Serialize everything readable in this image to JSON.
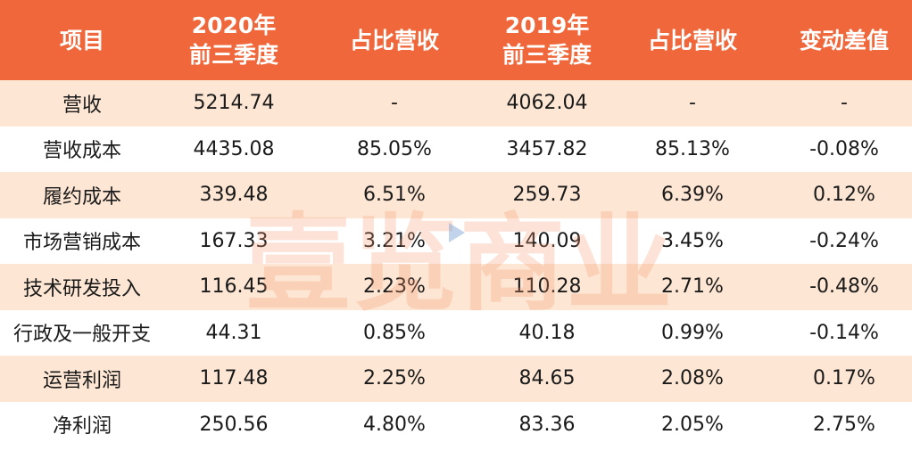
{
  "header": {
    "col0": "项目",
    "col1_line1": "2020年",
    "col1_line2": "前三季度",
    "col2": "占比营收",
    "col3_line1": "2019年",
    "col3_line2": "前三季度",
    "col4": "占比营收",
    "col5": "变动差值"
  },
  "rows": [
    {
      "item": "营收",
      "v2020": "5214.74",
      "p2020": "-",
      "v2019": "4062.04",
      "p2019": "-",
      "diff": "-"
    },
    {
      "item": "营收成本",
      "v2020": "4435.08",
      "p2020": "85.05%",
      "v2019": "3457.82",
      "p2019": "85.13%",
      "diff": "-0.08%"
    },
    {
      "item": "履约成本",
      "v2020": "339.48",
      "p2020": "6.51%",
      "v2019": "259.73",
      "p2019": "6.39%",
      "diff": "0.12%"
    },
    {
      "item": "市场营销成本",
      "v2020": "167.33",
      "p2020": "3.21%",
      "v2019": "140.09",
      "p2019": "3.45%",
      "diff": "-0.24%"
    },
    {
      "item": "技术研发投入",
      "v2020": "116.45",
      "p2020": "2.23%",
      "v2019": "110.28",
      "p2019": "2.71%",
      "diff": "-0.48%"
    },
    {
      "item": "行政及一般开支",
      "v2020": "44.31",
      "p2020": "0.85%",
      "v2019": "40.18",
      "p2019": "0.99%",
      "diff": "-0.14%"
    },
    {
      "item": "运营利润",
      "v2020": "117.48",
      "p2020": "2.25%",
      "v2019": "84.65",
      "p2019": "2.08%",
      "diff": "0.17%"
    },
    {
      "item": "净利润",
      "v2020": "250.56",
      "p2020": "4.80%",
      "v2019": "83.36",
      "p2019": "2.05%",
      "diff": "2.75%"
    }
  ],
  "watermark": "壹览商业",
  "colors": {
    "header_bg": "#f0673b",
    "row_alt_bg": "#fde6d3",
    "watermark": "#f4966e"
  }
}
